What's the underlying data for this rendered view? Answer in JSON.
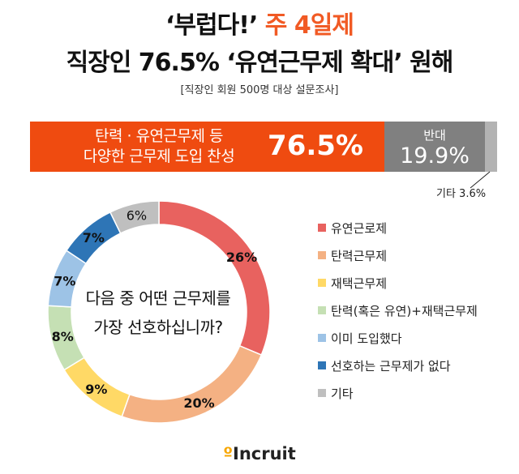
{
  "header": {
    "line1_prefix": "‘부럽다!’",
    "line1_accent": "주 4일제",
    "line2": "직장인 76.5% ‘유연근무제 확대’ 원해",
    "source": "[직장인 회원 500명 대상 설문조사]"
  },
  "colors": {
    "accent": "#f15a24",
    "agree": "#ef4b10",
    "oppose": "#808080",
    "other": "#b3b3b3"
  },
  "chart_data": [
    {
      "type": "bar",
      "orientation": "horizontal-stacked",
      "categories": [
        "탄력 · 유연근무제 등 다양한 근무제 도입 찬성",
        "반대",
        "기타"
      ],
      "values": [
        76.5,
        19.9,
        3.6
      ],
      "labels": {
        "agree_line1": "탄력 · 유연근무제 등",
        "agree_line2": "다양한 근무제 도입 찬성",
        "agree_value": "76.5%",
        "oppose_name": "반대",
        "oppose_value": "19.9%",
        "other_note": "기타 3.6%"
      }
    },
    {
      "type": "pie",
      "style": "donut",
      "center_text_line1": "다음 중 어떤 근무제를",
      "center_text_line2": "가장 선호하십니까?",
      "categories": [
        "유연근로제",
        "탄력근무제",
        "재택근무제",
        "탄력(혹은 유연)+재택근무제",
        "이미 도입했다",
        "선호하는 근무제가 없다",
        "기타"
      ],
      "values": [
        26,
        20,
        9,
        8,
        7,
        7,
        6
      ],
      "value_labels": [
        "26%",
        "20%",
        "9%",
        "8%",
        "7%",
        "7%",
        "6%"
      ],
      "colors": [
        "#e8625f",
        "#f4b183",
        "#ffd966",
        "#c5e0b4",
        "#9dc3e6",
        "#2e75b6",
        "#bfbfbf"
      ],
      "label_bold": [
        true,
        true,
        true,
        true,
        true,
        true,
        false
      ],
      "legend_position": "right"
    }
  ],
  "footer": {
    "logo_dot": "º",
    "logo_text": "Incruit"
  }
}
